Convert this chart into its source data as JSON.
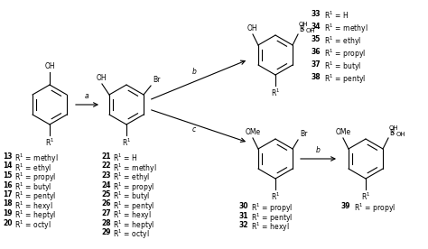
{
  "bg_color": "#ffffff",
  "fig_width": 4.74,
  "fig_height": 2.76,
  "dpi": 100,
  "fs": 5.5,
  "fsb": 5.5,
  "compounds_left": [
    [
      "13",
      "methyl"
    ],
    [
      "14",
      "ethyl"
    ],
    [
      "15",
      "propyl"
    ],
    [
      "16",
      "butyl"
    ],
    [
      "17",
      "pentyl"
    ],
    [
      "18",
      "hexyl"
    ],
    [
      "19",
      "heptyl"
    ],
    [
      "20",
      "octyl"
    ]
  ],
  "compounds_21": [
    [
      "21",
      "H"
    ],
    [
      "22",
      "methyl"
    ],
    [
      "23",
      "ethyl"
    ],
    [
      "24",
      "propyl"
    ],
    [
      "25",
      "butyl"
    ],
    [
      "26",
      "pentyl"
    ],
    [
      "27",
      "hexyl"
    ],
    [
      "28",
      "heptyl"
    ],
    [
      "29",
      "octyl"
    ]
  ],
  "compounds_33": [
    [
      "33",
      "H"
    ],
    [
      "34",
      "methyl"
    ],
    [
      "35",
      "ethyl"
    ],
    [
      "36",
      "propyl"
    ],
    [
      "37",
      "butyl"
    ],
    [
      "38",
      "pentyl"
    ]
  ],
  "compounds_30": [
    [
      "30",
      "propyl"
    ],
    [
      "31",
      "pentyl"
    ],
    [
      "32",
      "hexyl"
    ]
  ]
}
